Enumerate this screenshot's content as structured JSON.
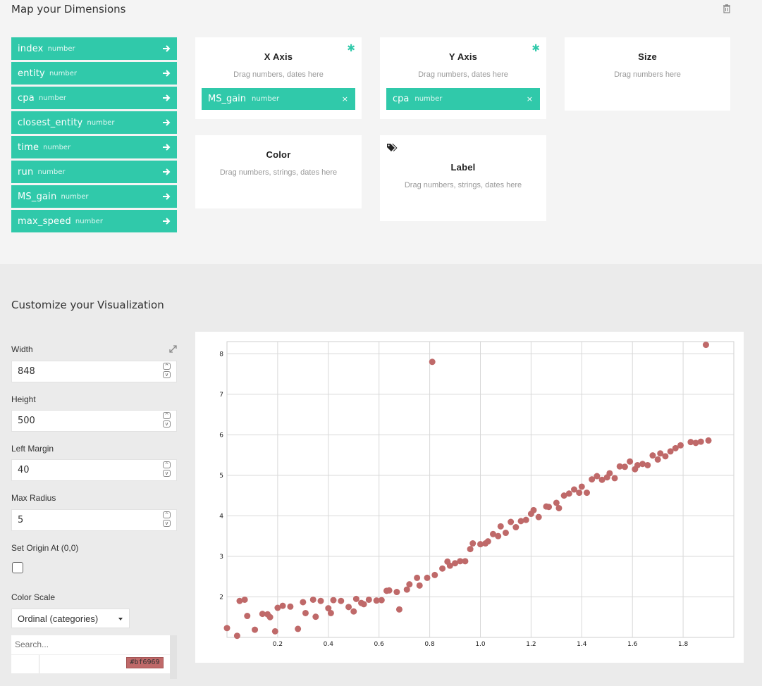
{
  "mapping": {
    "title": "Map your Dimensions",
    "dimensions": [
      {
        "name": "index",
        "type": "number"
      },
      {
        "name": "entity",
        "type": "number"
      },
      {
        "name": "cpa",
        "type": "number"
      },
      {
        "name": "closest_entity",
        "type": "number"
      },
      {
        "name": "time",
        "type": "number"
      },
      {
        "name": "run",
        "type": "number"
      },
      {
        "name": "MS_gain",
        "type": "number"
      },
      {
        "name": "max_speed",
        "type": "number"
      }
    ],
    "x_axis": {
      "title": "X Axis",
      "hint": "Drag numbers, dates here",
      "required": "✱",
      "chip": {
        "name": "MS_gain",
        "type": "number",
        "remove": "×"
      }
    },
    "y_axis": {
      "title": "Y Axis",
      "hint": "Drag numbers, dates here",
      "required": "✱",
      "chip": {
        "name": "cpa",
        "type": "number",
        "remove": "×"
      }
    },
    "size": {
      "title": "Size",
      "hint": "Drag numbers here"
    },
    "color": {
      "title": "Color",
      "hint": "Drag numbers, strings, dates here"
    },
    "label": {
      "title": "Label",
      "hint": "Drag numbers, strings, dates here"
    }
  },
  "customize": {
    "title": "Customize your Visualization",
    "width": {
      "label": "Width",
      "value": "848"
    },
    "height": {
      "label": "Height",
      "value": "500"
    },
    "left_margin": {
      "label": "Left Margin",
      "value": "40"
    },
    "max_radius": {
      "label": "Max Radius",
      "value": "5"
    },
    "origin": {
      "label": "Set Origin At (0,0)",
      "checked": false
    },
    "color_scale": {
      "label": "Color Scale",
      "selected": "Ordinal (categories)",
      "search_placeholder": "Search...",
      "swatch": "#bf6969"
    }
  },
  "colors": {
    "accent": "#30c9aa",
    "point": "#bf6969"
  },
  "chart_data": {
    "type": "scatter",
    "xlabel": "",
    "ylabel": "",
    "xlim": [
      0,
      2
    ],
    "ylim": [
      1,
      8.3
    ],
    "x_ticks": [
      "0.2",
      "0.4",
      "0.6",
      "0.8",
      "1.0",
      "1.2",
      "1.4",
      "1.6",
      "1.8"
    ],
    "y_ticks": [
      "2",
      "3",
      "4",
      "5",
      "6",
      "7",
      "8"
    ],
    "grid": true,
    "color": "#bf6969",
    "points": [
      [
        0.0,
        1.23
      ],
      [
        0.04,
        1.04
      ],
      [
        0.05,
        1.9
      ],
      [
        0.07,
        1.93
      ],
      [
        0.08,
        1.53
      ],
      [
        0.11,
        1.19
      ],
      [
        0.14,
        1.58
      ],
      [
        0.16,
        1.57
      ],
      [
        0.17,
        1.5
      ],
      [
        0.19,
        1.15
      ],
      [
        0.2,
        1.73
      ],
      [
        0.22,
        1.78
      ],
      [
        0.25,
        1.76
      ],
      [
        0.28,
        1.21
      ],
      [
        0.3,
        1.87
      ],
      [
        0.31,
        1.6
      ],
      [
        0.34,
        1.93
      ],
      [
        0.35,
        1.51
      ],
      [
        0.37,
        1.9
      ],
      [
        0.4,
        1.72
      ],
      [
        0.41,
        1.6
      ],
      [
        0.42,
        1.92
      ],
      [
        0.45,
        1.9
      ],
      [
        0.48,
        1.75
      ],
      [
        0.5,
        1.64
      ],
      [
        0.51,
        1.95
      ],
      [
        0.53,
        1.85
      ],
      [
        0.54,
        1.82
      ],
      [
        0.56,
        1.93
      ],
      [
        0.59,
        1.91
      ],
      [
        0.61,
        1.92
      ],
      [
        0.63,
        2.15
      ],
      [
        0.64,
        2.16
      ],
      [
        0.67,
        2.12
      ],
      [
        0.68,
        1.69
      ],
      [
        0.71,
        2.18
      ],
      [
        0.72,
        2.31
      ],
      [
        0.75,
        2.47
      ],
      [
        0.76,
        2.28
      ],
      [
        0.79,
        2.47
      ],
      [
        0.81,
        7.8
      ],
      [
        0.82,
        2.54
      ],
      [
        0.85,
        2.7
      ],
      [
        0.87,
        2.87
      ],
      [
        0.88,
        2.77
      ],
      [
        0.9,
        2.83
      ],
      [
        0.92,
        2.88
      ],
      [
        0.94,
        2.88
      ],
      [
        0.96,
        3.18
      ],
      [
        0.97,
        3.32
      ],
      [
        1.0,
        3.3
      ],
      [
        1.02,
        3.32
      ],
      [
        1.03,
        3.37
      ],
      [
        1.05,
        3.55
      ],
      [
        1.07,
        3.5
      ],
      [
        1.08,
        3.74
      ],
      [
        1.1,
        3.58
      ],
      [
        1.12,
        3.85
      ],
      [
        1.14,
        3.72
      ],
      [
        1.16,
        3.87
      ],
      [
        1.18,
        3.9
      ],
      [
        1.2,
        4.05
      ],
      [
        1.21,
        4.14
      ],
      [
        1.23,
        3.97
      ],
      [
        1.26,
        4.23
      ],
      [
        1.27,
        4.22
      ],
      [
        1.3,
        4.32
      ],
      [
        1.31,
        4.19
      ],
      [
        1.33,
        4.5
      ],
      [
        1.35,
        4.55
      ],
      [
        1.37,
        4.65
      ],
      [
        1.39,
        4.57
      ],
      [
        1.4,
        4.72
      ],
      [
        1.42,
        4.57
      ],
      [
        1.44,
        4.9
      ],
      [
        1.46,
        4.98
      ],
      [
        1.48,
        4.89
      ],
      [
        1.5,
        4.95
      ],
      [
        1.51,
        5.05
      ],
      [
        1.53,
        4.93
      ],
      [
        1.55,
        5.22
      ],
      [
        1.57,
        5.21
      ],
      [
        1.59,
        5.34
      ],
      [
        1.61,
        5.15
      ],
      [
        1.62,
        5.25
      ],
      [
        1.64,
        5.28
      ],
      [
        1.66,
        5.25
      ],
      [
        1.68,
        5.49
      ],
      [
        1.7,
        5.39
      ],
      [
        1.71,
        5.54
      ],
      [
        1.73,
        5.47
      ],
      [
        1.75,
        5.59
      ],
      [
        1.77,
        5.67
      ],
      [
        1.79,
        5.74
      ],
      [
        1.83,
        5.82
      ],
      [
        1.85,
        5.8
      ],
      [
        1.87,
        5.83
      ],
      [
        1.89,
        8.22
      ],
      [
        1.9,
        5.86
      ]
    ]
  }
}
